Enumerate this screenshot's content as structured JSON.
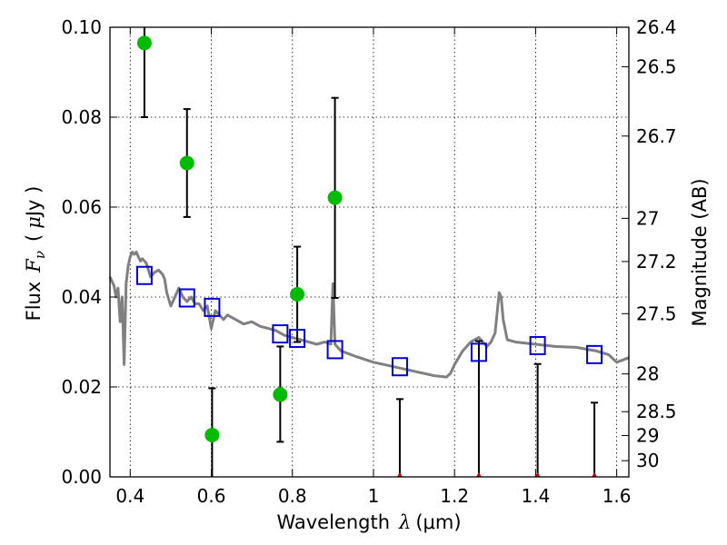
{
  "chart_data": {
    "type": "scatter",
    "xlabel": {
      "prefix": "Wavelength",
      "symbol": "λ",
      "unit": "(μm)"
    },
    "ylabel": {
      "prefix": "Flux",
      "symbol": "F",
      "subscript": "ν",
      "unit_open": "(",
      "unit_mu": "μ",
      "unit_rest": "Jy )"
    },
    "y2label": "Magnitude (AB)",
    "xlim": [
      0.35,
      1.63
    ],
    "ylim": [
      0.0,
      0.1
    ],
    "x_ticks": [
      {
        "value": 0.4,
        "label": "0.4"
      },
      {
        "value": 0.6,
        "label": "0.6"
      },
      {
        "value": 0.8,
        "label": "0.8"
      },
      {
        "value": 1.0,
        "label": "1"
      },
      {
        "value": 1.2,
        "label": "1.2"
      },
      {
        "value": 1.4,
        "label": "1.4"
      },
      {
        "value": 1.6,
        "label": "1.6"
      }
    ],
    "y_ticks": [
      {
        "value": 0.0,
        "label": "0.00"
      },
      {
        "value": 0.02,
        "label": "0.02"
      },
      {
        "value": 0.04,
        "label": "0.04"
      },
      {
        "value": 0.06,
        "label": "0.06"
      },
      {
        "value": 0.08,
        "label": "0.08"
      },
      {
        "value": 0.1,
        "label": "0.10"
      }
    ],
    "mag_ticks": [
      {
        "flux": 0.1,
        "label": "26.4"
      },
      {
        "flux": 0.0912,
        "label": "26.5"
      },
      {
        "flux": 0.0758,
        "label": "26.7"
      },
      {
        "flux": 0.0575,
        "label": "27"
      },
      {
        "flux": 0.0479,
        "label": "27.2"
      },
      {
        "flux": 0.0363,
        "label": "27.5"
      },
      {
        "flux": 0.0229,
        "label": "28"
      },
      {
        "flux": 0.0145,
        "label": "28.5"
      },
      {
        "flux": 0.0092,
        "label": "29"
      },
      {
        "flux": 0.0036,
        "label": "30"
      }
    ],
    "grid": true,
    "colors": {
      "model": "#808080",
      "observed": "#00bb00",
      "model_photometry": "#0000dd",
      "upper_limit_marker": "#cc0000",
      "errorbar": "#000000"
    },
    "model_spectrum": {
      "name": "",
      "x": [
        0.35,
        0.355,
        0.36,
        0.365,
        0.37,
        0.375,
        0.38,
        0.385,
        0.39,
        0.395,
        0.4,
        0.405,
        0.41,
        0.415,
        0.42,
        0.425,
        0.43,
        0.44,
        0.45,
        0.46,
        0.47,
        0.48,
        0.485,
        0.49,
        0.5,
        0.51,
        0.52,
        0.53,
        0.54,
        0.55,
        0.56,
        0.57,
        0.58,
        0.59,
        0.6,
        0.61,
        0.62,
        0.63,
        0.64,
        0.65,
        0.66,
        0.68,
        0.7,
        0.72,
        0.74,
        0.76,
        0.78,
        0.8,
        0.82,
        0.84,
        0.86,
        0.88,
        0.895,
        0.9,
        0.905,
        0.91,
        0.92,
        0.95,
        1.0,
        1.05,
        1.1,
        1.15,
        1.18,
        1.19,
        1.2,
        1.22,
        1.24,
        1.26,
        1.28,
        1.29,
        1.3,
        1.31,
        1.315,
        1.32,
        1.33,
        1.35,
        1.4,
        1.45,
        1.5,
        1.55,
        1.58,
        1.6,
        1.63
      ],
      "y": [
        0.0445,
        0.0435,
        0.0425,
        0.04,
        0.042,
        0.0345,
        0.04,
        0.025,
        0.043,
        0.047,
        0.049,
        0.05,
        0.0495,
        0.05,
        0.049,
        0.048,
        0.0485,
        0.0475,
        0.0445,
        0.0455,
        0.046,
        0.045,
        0.044,
        0.041,
        0.038,
        0.04,
        0.042,
        0.04,
        0.039,
        0.04,
        0.0385,
        0.0385,
        0.037,
        0.038,
        0.033,
        0.037,
        0.036,
        0.035,
        0.036,
        0.0355,
        0.035,
        0.034,
        0.0345,
        0.0335,
        0.033,
        0.0325,
        0.0315,
        0.031,
        0.0305,
        0.03,
        0.0295,
        0.03,
        0.0295,
        0.043,
        0.0295,
        0.029,
        0.028,
        0.027,
        0.0255,
        0.0245,
        0.0235,
        0.0225,
        0.0222,
        0.023,
        0.025,
        0.028,
        0.03,
        0.031,
        0.029,
        0.03,
        0.032,
        0.041,
        0.04,
        0.035,
        0.0305,
        0.03,
        0.0295,
        0.029,
        0.0288,
        0.028,
        0.0272,
        0.0255,
        0.0265
      ]
    },
    "model_photometry": {
      "name": "",
      "x": [
        0.435,
        0.54,
        0.602,
        0.77,
        0.812,
        0.905,
        1.065,
        1.26,
        1.405,
        1.545
      ],
      "y": [
        0.0448,
        0.0398,
        0.0377,
        0.0318,
        0.0308,
        0.0283,
        0.0245,
        0.0277,
        0.0292,
        0.0272
      ]
    },
    "observed": {
      "name": "",
      "points": [
        {
          "x": 0.435,
          "y": 0.0965,
          "y_low": 0.08,
          "y_high": 0.1
        },
        {
          "x": 0.54,
          "y": 0.0698,
          "y_low": 0.0578,
          "y_high": 0.0818
        },
        {
          "x": 0.602,
          "y": 0.0093,
          "y_low": 0.0,
          "y_high": 0.0197
        },
        {
          "x": 0.77,
          "y": 0.0183,
          "y_low": 0.0078,
          "y_high": 0.029
        },
        {
          "x": 0.812,
          "y": 0.0406,
          "y_low": 0.03,
          "y_high": 0.0512
        },
        {
          "x": 0.905,
          "y": 0.0621,
          "y_low": 0.0398,
          "y_high": 0.0843
        }
      ]
    },
    "upper_limits": {
      "name": "",
      "points": [
        {
          "x": 1.065,
          "y": 0.0,
          "y_high": 0.0173
        },
        {
          "x": 1.26,
          "y": 0.0,
          "y_high": 0.0302
        },
        {
          "x": 1.405,
          "y": 0.0,
          "y_high": 0.0251
        },
        {
          "x": 1.545,
          "y": 0.0,
          "y_high": 0.0165
        }
      ]
    }
  }
}
